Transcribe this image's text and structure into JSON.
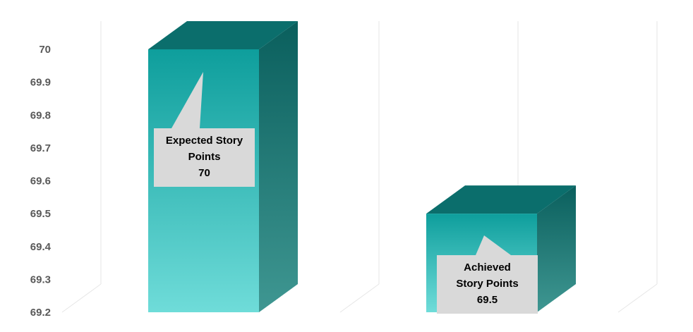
{
  "chart_data": {
    "type": "bar",
    "categories": [
      "",
      ""
    ],
    "values": [
      70,
      69.5
    ],
    "ylim": [
      69.2,
      70
    ],
    "yticks": [
      69.2,
      69.3,
      69.4,
      69.5,
      69.6,
      69.7,
      69.8,
      69.9,
      70
    ],
    "ytick_labels": [
      "69.2",
      "69.3",
      "69.4",
      "69.5",
      "69.6",
      "69.7",
      "69.8",
      "69.9",
      "70"
    ],
    "data_labels": [
      [
        "Expected Story",
        "Points",
        "70"
      ],
      [
        "Achieved",
        "Story Points",
        "69.5"
      ]
    ],
    "grid": true,
    "legend": "none",
    "colors": {
      "front_top": "#0e9e9c",
      "front_bottom": "#6fdcd9",
      "top_face": "#0b6e6c",
      "side_top": "#0a5f5d",
      "side_bottom": "#3f9792",
      "callout": "#d9d9d9",
      "gridline": "#e6e6e6",
      "tick_text": "#595959"
    }
  }
}
